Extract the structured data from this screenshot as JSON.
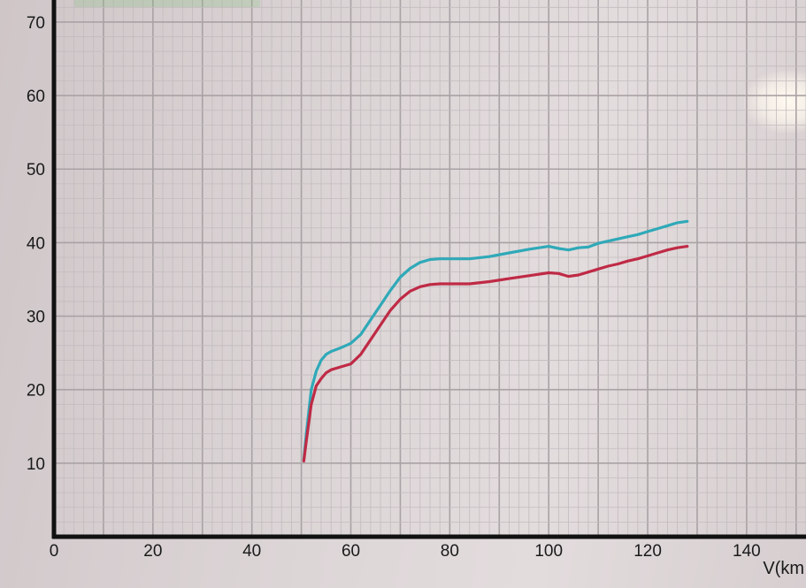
{
  "chart_data": {
    "type": "line",
    "title": "",
    "xlabel": "V(km",
    "ylabel": "",
    "xlim": [
      0,
      152
    ],
    "ylim": [
      0,
      73
    ],
    "x_ticks": [
      "0",
      "20",
      "40",
      "60",
      "80",
      "100",
      "120",
      "140"
    ],
    "y_ticks": [
      "10",
      "20",
      "30",
      "40",
      "50",
      "60",
      "70"
    ],
    "grid": true,
    "legend": {
      "placement": "top-left",
      "color": "#7ec07a"
    },
    "series": [
      {
        "color": "#2fa9b8",
        "x": [
          50.5,
          51,
          51.5,
          52,
          53,
          54,
          55,
          56,
          58,
          60,
          62,
          64,
          66,
          68,
          70,
          72,
          74,
          76,
          78,
          80,
          84,
          88,
          92,
          96,
          100,
          102,
          104,
          106,
          108,
          110,
          112,
          114,
          116,
          118,
          120,
          122,
          124,
          126,
          128
        ],
        "y": [
          10.5,
          14,
          17,
          20,
          22.5,
          24,
          24.8,
          25.2,
          25.7,
          26.3,
          27.5,
          29.5,
          31.5,
          33.5,
          35.3,
          36.5,
          37.3,
          37.7,
          37.8,
          37.8,
          37.8,
          38.1,
          38.6,
          39.1,
          39.5,
          39.2,
          39.0,
          39.3,
          39.4,
          39.9,
          40.2,
          40.5,
          40.8,
          41.1,
          41.5,
          41.9,
          42.3,
          42.7,
          42.9
        ]
      },
      {
        "color": "#bf2a45",
        "x": [
          50.5,
          51,
          51.5,
          52,
          53,
          54,
          55,
          56,
          58,
          60,
          62,
          64,
          66,
          68,
          70,
          72,
          74,
          76,
          78,
          80,
          84,
          88,
          92,
          96,
          100,
          102,
          104,
          106,
          108,
          110,
          112,
          114,
          116,
          118,
          120,
          122,
          124,
          126,
          128
        ],
        "y": [
          10.3,
          13,
          15.5,
          18,
          20.5,
          21.5,
          22.3,
          22.7,
          23.1,
          23.5,
          24.8,
          26.8,
          28.8,
          30.8,
          32.3,
          33.4,
          34.0,
          34.3,
          34.4,
          34.4,
          34.4,
          34.7,
          35.1,
          35.5,
          35.9,
          35.8,
          35.4,
          35.6,
          36.0,
          36.4,
          36.8,
          37.1,
          37.5,
          37.8,
          38.2,
          38.6,
          39.0,
          39.3,
          39.5
        ]
      }
    ]
  }
}
